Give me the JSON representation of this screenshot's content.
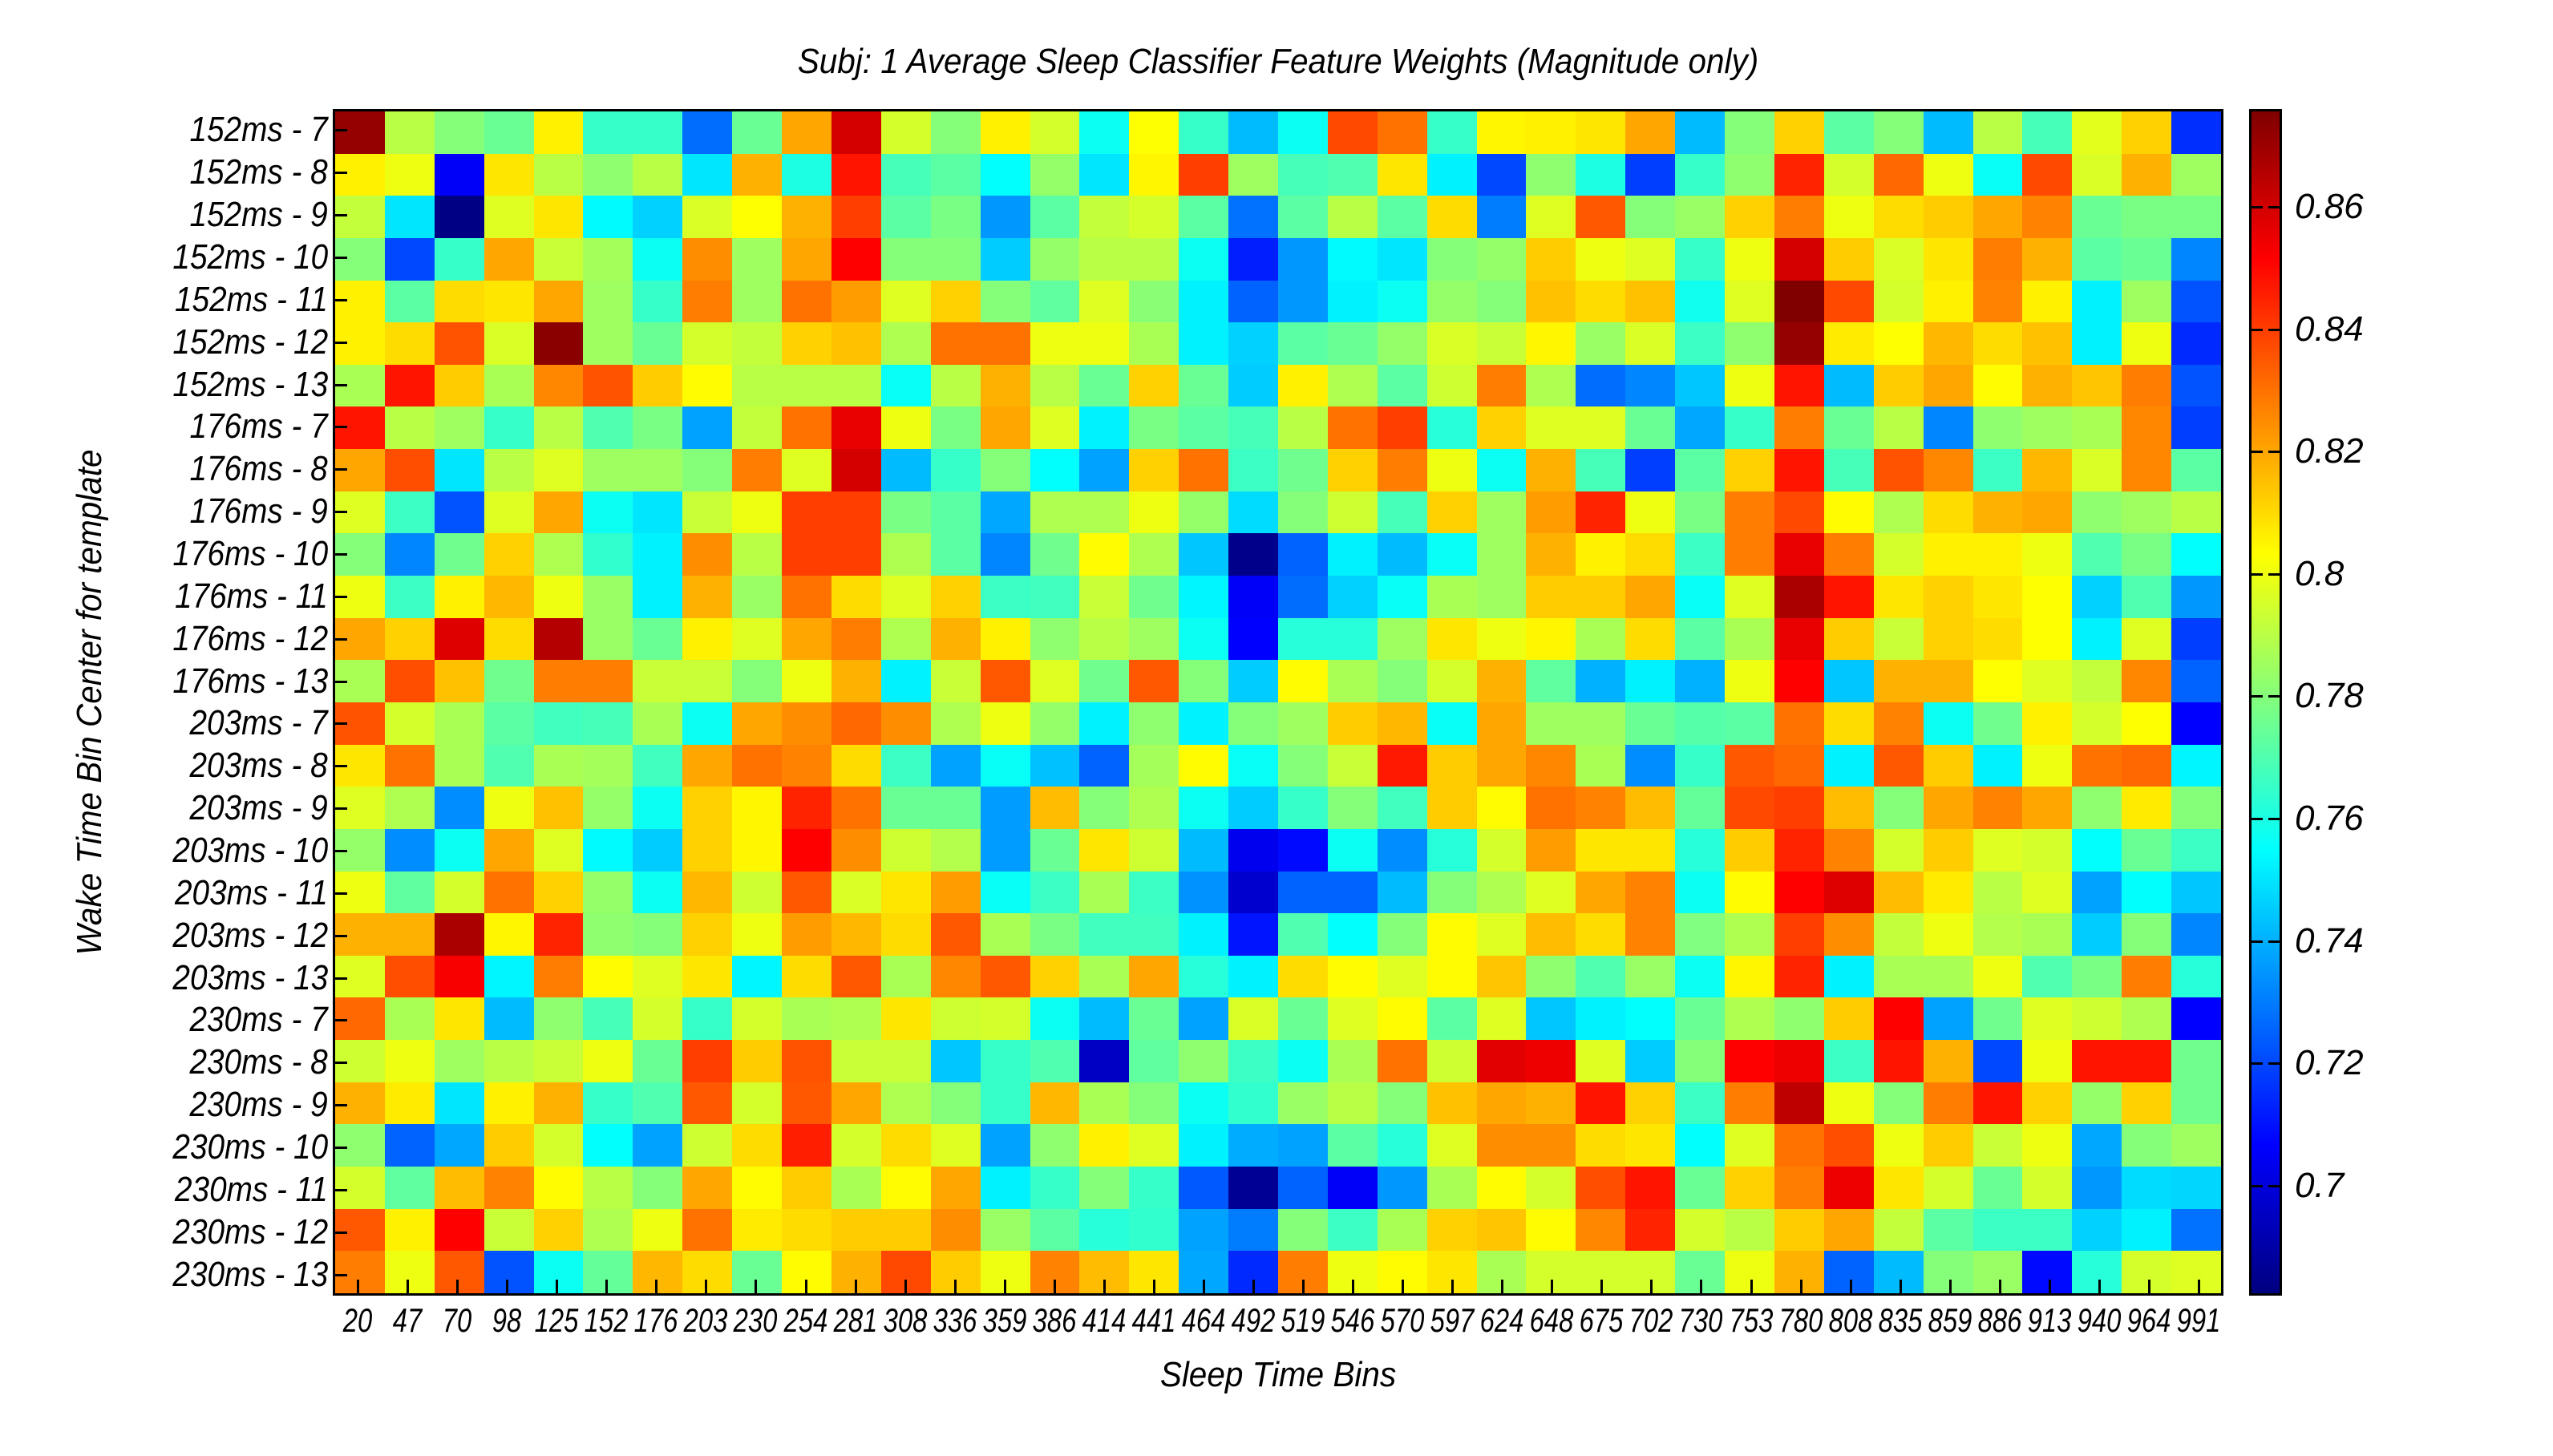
{
  "chart_data": {
    "type": "heatmap",
    "title": "Subj: 1 Average Sleep Classifier Feature Weights (Magnitude only)",
    "xlabel": "Sleep Time Bins",
    "ylabel": "Wake Time Bin Center for template",
    "x": [
      "20",
      "47",
      "70",
      "98",
      "125",
      "152",
      "176",
      "203",
      "230",
      "254",
      "281",
      "308",
      "336",
      "359",
      "386",
      "414",
      "441",
      "464",
      "492",
      "519",
      "546",
      "570",
      "597",
      "624",
      "648",
      "675",
      "702",
      "730",
      "753",
      "780",
      "808",
      "835",
      "859",
      "886",
      "913",
      "940",
      "964",
      "991"
    ],
    "y": [
      "152ms - 7",
      "152ms - 8",
      "152ms - 9",
      "152ms - 10",
      "152ms - 11",
      "152ms - 12",
      "152ms - 13",
      "176ms - 7",
      "176ms - 8",
      "176ms - 9",
      "176ms - 10",
      "176ms - 11",
      "176ms - 12",
      "176ms - 13",
      "203ms - 7",
      "203ms - 8",
      "203ms - 9",
      "203ms - 10",
      "203ms - 11",
      "203ms - 12",
      "203ms - 13",
      "230ms - 7",
      "230ms - 8",
      "230ms - 9",
      "230ms - 10",
      "230ms - 11",
      "230ms - 12",
      "230ms - 13"
    ],
    "colorbar": {
      "colormap": "jet",
      "range": [
        0.682,
        0.876
      ],
      "ticks": [
        0.86,
        0.84,
        0.82,
        0.8,
        0.78,
        0.76,
        0.74,
        0.72,
        0.7
      ],
      "tick_labels": [
        "0.86",
        "0.84",
        "0.82",
        "0.8",
        "0.78",
        "0.76",
        "0.74",
        "0.72",
        "0.7"
      ]
    },
    "grid": false,
    "legend_position": "right (colorbar)",
    "values": [
      [
        0.872,
        0.79,
        0.78,
        0.775,
        0.806,
        0.765,
        0.765,
        0.727,
        0.775,
        0.82,
        0.86,
        0.795,
        0.78,
        0.806,
        0.795,
        0.757,
        0.803,
        0.765,
        0.742,
        0.757,
        0.838,
        0.83,
        0.765,
        0.805,
        0.806,
        0.808,
        0.82,
        0.742,
        0.78,
        0.812,
        0.772,
        0.78,
        0.742,
        0.79,
        0.768,
        0.798,
        0.812,
        0.715
      ],
      [
        0.806,
        0.8,
        0.705,
        0.808,
        0.79,
        0.782,
        0.79,
        0.75,
        0.818,
        0.76,
        0.848,
        0.768,
        0.772,
        0.755,
        0.783,
        0.75,
        0.805,
        0.84,
        0.785,
        0.768,
        0.77,
        0.808,
        0.752,
        0.72,
        0.782,
        0.76,
        0.718,
        0.765,
        0.782,
        0.845,
        0.795,
        0.832,
        0.8,
        0.756,
        0.838,
        0.796,
        0.818,
        0.785
      ],
      [
        0.792,
        0.75,
        0.683,
        0.797,
        0.808,
        0.754,
        0.746,
        0.796,
        0.803,
        0.818,
        0.84,
        0.772,
        0.778,
        0.735,
        0.772,
        0.792,
        0.795,
        0.772,
        0.728,
        0.772,
        0.79,
        0.772,
        0.81,
        0.73,
        0.797,
        0.835,
        0.78,
        0.784,
        0.812,
        0.828,
        0.8,
        0.81,
        0.813,
        0.82,
        0.827,
        0.775,
        0.778,
        0.778
      ],
      [
        0.78,
        0.72,
        0.765,
        0.82,
        0.793,
        0.786,
        0.757,
        0.825,
        0.785,
        0.82,
        0.852,
        0.78,
        0.78,
        0.745,
        0.783,
        0.79,
        0.79,
        0.757,
        0.712,
        0.735,
        0.754,
        0.75,
        0.78,
        0.783,
        0.813,
        0.8,
        0.797,
        0.765,
        0.8,
        0.86,
        0.813,
        0.796,
        0.808,
        0.828,
        0.818,
        0.772,
        0.775,
        0.732
      ],
      [
        0.806,
        0.772,
        0.81,
        0.808,
        0.82,
        0.785,
        0.765,
        0.828,
        0.785,
        0.83,
        0.822,
        0.797,
        0.812,
        0.78,
        0.773,
        0.797,
        0.781,
        0.752,
        0.725,
        0.735,
        0.752,
        0.757,
        0.783,
        0.78,
        0.815,
        0.81,
        0.815,
        0.758,
        0.797,
        0.876,
        0.838,
        0.795,
        0.806,
        0.827,
        0.806,
        0.752,
        0.785,
        0.722
      ],
      [
        0.806,
        0.81,
        0.836,
        0.796,
        0.874,
        0.785,
        0.775,
        0.795,
        0.792,
        0.812,
        0.815,
        0.788,
        0.83,
        0.83,
        0.8,
        0.8,
        0.787,
        0.752,
        0.746,
        0.772,
        0.775,
        0.783,
        0.796,
        0.793,
        0.805,
        0.784,
        0.796,
        0.766,
        0.782,
        0.872,
        0.807,
        0.803,
        0.817,
        0.81,
        0.815,
        0.752,
        0.8,
        0.714
      ],
      [
        0.787,
        0.848,
        0.813,
        0.787,
        0.826,
        0.836,
        0.813,
        0.804,
        0.79,
        0.79,
        0.79,
        0.756,
        0.79,
        0.818,
        0.79,
        0.775,
        0.812,
        0.775,
        0.745,
        0.806,
        0.788,
        0.772,
        0.794,
        0.828,
        0.788,
        0.727,
        0.732,
        0.744,
        0.8,
        0.848,
        0.742,
        0.813,
        0.82,
        0.804,
        0.818,
        0.814,
        0.828,
        0.722
      ],
      [
        0.848,
        0.79,
        0.785,
        0.765,
        0.79,
        0.77,
        0.778,
        0.737,
        0.792,
        0.83,
        0.856,
        0.8,
        0.778,
        0.82,
        0.797,
        0.752,
        0.778,
        0.772,
        0.768,
        0.79,
        0.83,
        0.84,
        0.762,
        0.812,
        0.797,
        0.797,
        0.775,
        0.738,
        0.765,
        0.828,
        0.775,
        0.79,
        0.732,
        0.782,
        0.785,
        0.787,
        0.826,
        0.718
      ],
      [
        0.82,
        0.837,
        0.75,
        0.79,
        0.797,
        0.785,
        0.785,
        0.78,
        0.828,
        0.797,
        0.86,
        0.742,
        0.765,
        0.78,
        0.755,
        0.737,
        0.812,
        0.83,
        0.766,
        0.776,
        0.812,
        0.828,
        0.8,
        0.757,
        0.818,
        0.768,
        0.718,
        0.772,
        0.812,
        0.848,
        0.768,
        0.836,
        0.826,
        0.766,
        0.817,
        0.796,
        0.826,
        0.772
      ],
      [
        0.797,
        0.766,
        0.722,
        0.797,
        0.82,
        0.757,
        0.75,
        0.793,
        0.8,
        0.84,
        0.84,
        0.778,
        0.772,
        0.738,
        0.788,
        0.788,
        0.8,
        0.783,
        0.748,
        0.78,
        0.794,
        0.768,
        0.812,
        0.785,
        0.822,
        0.845,
        0.8,
        0.778,
        0.828,
        0.838,
        0.804,
        0.788,
        0.81,
        0.818,
        0.82,
        0.782,
        0.785,
        0.79
      ],
      [
        0.78,
        0.732,
        0.776,
        0.812,
        0.788,
        0.764,
        0.752,
        0.825,
        0.79,
        0.84,
        0.84,
        0.788,
        0.772,
        0.732,
        0.776,
        0.804,
        0.788,
        0.744,
        0.684,
        0.725,
        0.752,
        0.742,
        0.756,
        0.785,
        0.818,
        0.806,
        0.81,
        0.766,
        0.828,
        0.856,
        0.828,
        0.795,
        0.806,
        0.806,
        0.8,
        0.77,
        0.778,
        0.755
      ],
      [
        0.8,
        0.766,
        0.806,
        0.817,
        0.8,
        0.784,
        0.752,
        0.818,
        0.784,
        0.83,
        0.81,
        0.797,
        0.812,
        0.766,
        0.767,
        0.793,
        0.776,
        0.753,
        0.705,
        0.727,
        0.746,
        0.756,
        0.787,
        0.785,
        0.813,
        0.813,
        0.82,
        0.756,
        0.797,
        0.868,
        0.848,
        0.808,
        0.812,
        0.808,
        0.803,
        0.746,
        0.77,
        0.735
      ],
      [
        0.82,
        0.812,
        0.858,
        0.81,
        0.866,
        0.784,
        0.775,
        0.806,
        0.797,
        0.82,
        0.828,
        0.788,
        0.818,
        0.806,
        0.782,
        0.79,
        0.785,
        0.757,
        0.706,
        0.762,
        0.762,
        0.785,
        0.808,
        0.8,
        0.805,
        0.787,
        0.81,
        0.772,
        0.787,
        0.856,
        0.813,
        0.793,
        0.812,
        0.81,
        0.803,
        0.752,
        0.797,
        0.718
      ],
      [
        0.787,
        0.837,
        0.815,
        0.776,
        0.828,
        0.828,
        0.793,
        0.793,
        0.78,
        0.8,
        0.818,
        0.752,
        0.793,
        0.835,
        0.797,
        0.776,
        0.835,
        0.78,
        0.745,
        0.804,
        0.787,
        0.78,
        0.795,
        0.818,
        0.773,
        0.74,
        0.752,
        0.74,
        0.8,
        0.852,
        0.744,
        0.818,
        0.818,
        0.803,
        0.797,
        0.792,
        0.826,
        0.725
      ],
      [
        0.836,
        0.795,
        0.787,
        0.772,
        0.767,
        0.768,
        0.787,
        0.757,
        0.82,
        0.825,
        0.832,
        0.825,
        0.788,
        0.8,
        0.783,
        0.752,
        0.782,
        0.752,
        0.78,
        0.785,
        0.813,
        0.817,
        0.756,
        0.82,
        0.785,
        0.785,
        0.775,
        0.771,
        0.772,
        0.83,
        0.81,
        0.827,
        0.757,
        0.776,
        0.806,
        0.795,
        0.803,
        0.706
      ],
      [
        0.808,
        0.83,
        0.787,
        0.77,
        0.787,
        0.786,
        0.767,
        0.82,
        0.83,
        0.827,
        0.81,
        0.766,
        0.737,
        0.756,
        0.743,
        0.725,
        0.786,
        0.804,
        0.756,
        0.78,
        0.793,
        0.847,
        0.813,
        0.82,
        0.826,
        0.787,
        0.733,
        0.765,
        0.835,
        0.832,
        0.752,
        0.835,
        0.813,
        0.752,
        0.8,
        0.83,
        0.832,
        0.753
      ],
      [
        0.797,
        0.788,
        0.733,
        0.8,
        0.815,
        0.783,
        0.757,
        0.812,
        0.805,
        0.845,
        0.83,
        0.775,
        0.775,
        0.736,
        0.816,
        0.78,
        0.788,
        0.757,
        0.745,
        0.765,
        0.78,
        0.767,
        0.813,
        0.804,
        0.83,
        0.827,
        0.816,
        0.774,
        0.838,
        0.84,
        0.816,
        0.78,
        0.82,
        0.827,
        0.82,
        0.782,
        0.807,
        0.78
      ],
      [
        0.783,
        0.733,
        0.757,
        0.82,
        0.797,
        0.754,
        0.745,
        0.812,
        0.805,
        0.852,
        0.825,
        0.794,
        0.789,
        0.736,
        0.775,
        0.808,
        0.794,
        0.742,
        0.703,
        0.708,
        0.757,
        0.733,
        0.762,
        0.795,
        0.822,
        0.808,
        0.808,
        0.762,
        0.813,
        0.845,
        0.827,
        0.795,
        0.813,
        0.797,
        0.795,
        0.755,
        0.775,
        0.766
      ],
      [
        0.8,
        0.773,
        0.795,
        0.83,
        0.812,
        0.783,
        0.757,
        0.817,
        0.794,
        0.835,
        0.796,
        0.808,
        0.822,
        0.756,
        0.766,
        0.787,
        0.766,
        0.734,
        0.697,
        0.725,
        0.725,
        0.742,
        0.78,
        0.788,
        0.797,
        0.82,
        0.827,
        0.757,
        0.804,
        0.852,
        0.858,
        0.816,
        0.807,
        0.79,
        0.797,
        0.737,
        0.755,
        0.744
      ],
      [
        0.818,
        0.818,
        0.868,
        0.805,
        0.845,
        0.782,
        0.78,
        0.812,
        0.8,
        0.822,
        0.817,
        0.81,
        0.835,
        0.787,
        0.778,
        0.767,
        0.767,
        0.752,
        0.71,
        0.77,
        0.755,
        0.78,
        0.804,
        0.797,
        0.816,
        0.81,
        0.827,
        0.779,
        0.788,
        0.84,
        0.825,
        0.792,
        0.8,
        0.789,
        0.787,
        0.745,
        0.78,
        0.732
      ],
      [
        0.797,
        0.837,
        0.853,
        0.753,
        0.828,
        0.804,
        0.797,
        0.808,
        0.753,
        0.81,
        0.835,
        0.787,
        0.826,
        0.835,
        0.812,
        0.787,
        0.82,
        0.762,
        0.752,
        0.81,
        0.804,
        0.797,
        0.804,
        0.814,
        0.782,
        0.77,
        0.784,
        0.757,
        0.805,
        0.845,
        0.752,
        0.787,
        0.787,
        0.8,
        0.77,
        0.778,
        0.828,
        0.762
      ],
      [
        0.832,
        0.787,
        0.808,
        0.742,
        0.782,
        0.768,
        0.795,
        0.765,
        0.795,
        0.787,
        0.788,
        0.808,
        0.794,
        0.795,
        0.757,
        0.742,
        0.775,
        0.737,
        0.796,
        0.775,
        0.797,
        0.804,
        0.772,
        0.797,
        0.744,
        0.752,
        0.755,
        0.775,
        0.788,
        0.782,
        0.813,
        0.852,
        0.737,
        0.776,
        0.797,
        0.794,
        0.788,
        0.706
      ],
      [
        0.794,
        0.8,
        0.785,
        0.79,
        0.793,
        0.8,
        0.775,
        0.84,
        0.813,
        0.836,
        0.793,
        0.793,
        0.744,
        0.765,
        0.77,
        0.695,
        0.773,
        0.782,
        0.766,
        0.757,
        0.787,
        0.83,
        0.794,
        0.857,
        0.855,
        0.797,
        0.745,
        0.78,
        0.852,
        0.855,
        0.766,
        0.848,
        0.818,
        0.72,
        0.8,
        0.848,
        0.848,
        0.776
      ],
      [
        0.818,
        0.807,
        0.75,
        0.806,
        0.818,
        0.765,
        0.77,
        0.835,
        0.795,
        0.835,
        0.82,
        0.788,
        0.78,
        0.765,
        0.817,
        0.787,
        0.78,
        0.757,
        0.764,
        0.784,
        0.79,
        0.78,
        0.815,
        0.82,
        0.818,
        0.848,
        0.812,
        0.766,
        0.828,
        0.864,
        0.8,
        0.78,
        0.828,
        0.848,
        0.812,
        0.783,
        0.812,
        0.776
      ],
      [
        0.782,
        0.725,
        0.738,
        0.813,
        0.795,
        0.755,
        0.737,
        0.794,
        0.81,
        0.846,
        0.795,
        0.81,
        0.797,
        0.737,
        0.782,
        0.806,
        0.797,
        0.752,
        0.739,
        0.737,
        0.772,
        0.762,
        0.797,
        0.825,
        0.825,
        0.81,
        0.808,
        0.755,
        0.797,
        0.83,
        0.837,
        0.8,
        0.813,
        0.793,
        0.8,
        0.738,
        0.78,
        0.785
      ],
      [
        0.795,
        0.773,
        0.816,
        0.827,
        0.804,
        0.79,
        0.78,
        0.82,
        0.804,
        0.813,
        0.787,
        0.804,
        0.82,
        0.752,
        0.765,
        0.78,
        0.765,
        0.723,
        0.686,
        0.725,
        0.705,
        0.735,
        0.787,
        0.804,
        0.795,
        0.837,
        0.848,
        0.775,
        0.812,
        0.828,
        0.855,
        0.808,
        0.795,
        0.775,
        0.795,
        0.735,
        0.748,
        0.747
      ],
      [
        0.835,
        0.806,
        0.852,
        0.793,
        0.812,
        0.788,
        0.8,
        0.83,
        0.807,
        0.81,
        0.813,
        0.813,
        0.825,
        0.784,
        0.772,
        0.762,
        0.764,
        0.737,
        0.73,
        0.78,
        0.766,
        0.787,
        0.812,
        0.814,
        0.804,
        0.826,
        0.845,
        0.795,
        0.79,
        0.813,
        0.82,
        0.792,
        0.772,
        0.766,
        0.766,
        0.746,
        0.752,
        0.728
      ],
      [
        0.828,
        0.8,
        0.835,
        0.722,
        0.757,
        0.774,
        0.817,
        0.81,
        0.775,
        0.804,
        0.818,
        0.838,
        0.813,
        0.8,
        0.827,
        0.816,
        0.808,
        0.738,
        0.714,
        0.828,
        0.8,
        0.804,
        0.808,
        0.787,
        0.795,
        0.795,
        0.795,
        0.775,
        0.8,
        0.818,
        0.725,
        0.742,
        0.78,
        0.784,
        0.708,
        0.762,
        0.795,
        0.797
      ]
    ]
  }
}
